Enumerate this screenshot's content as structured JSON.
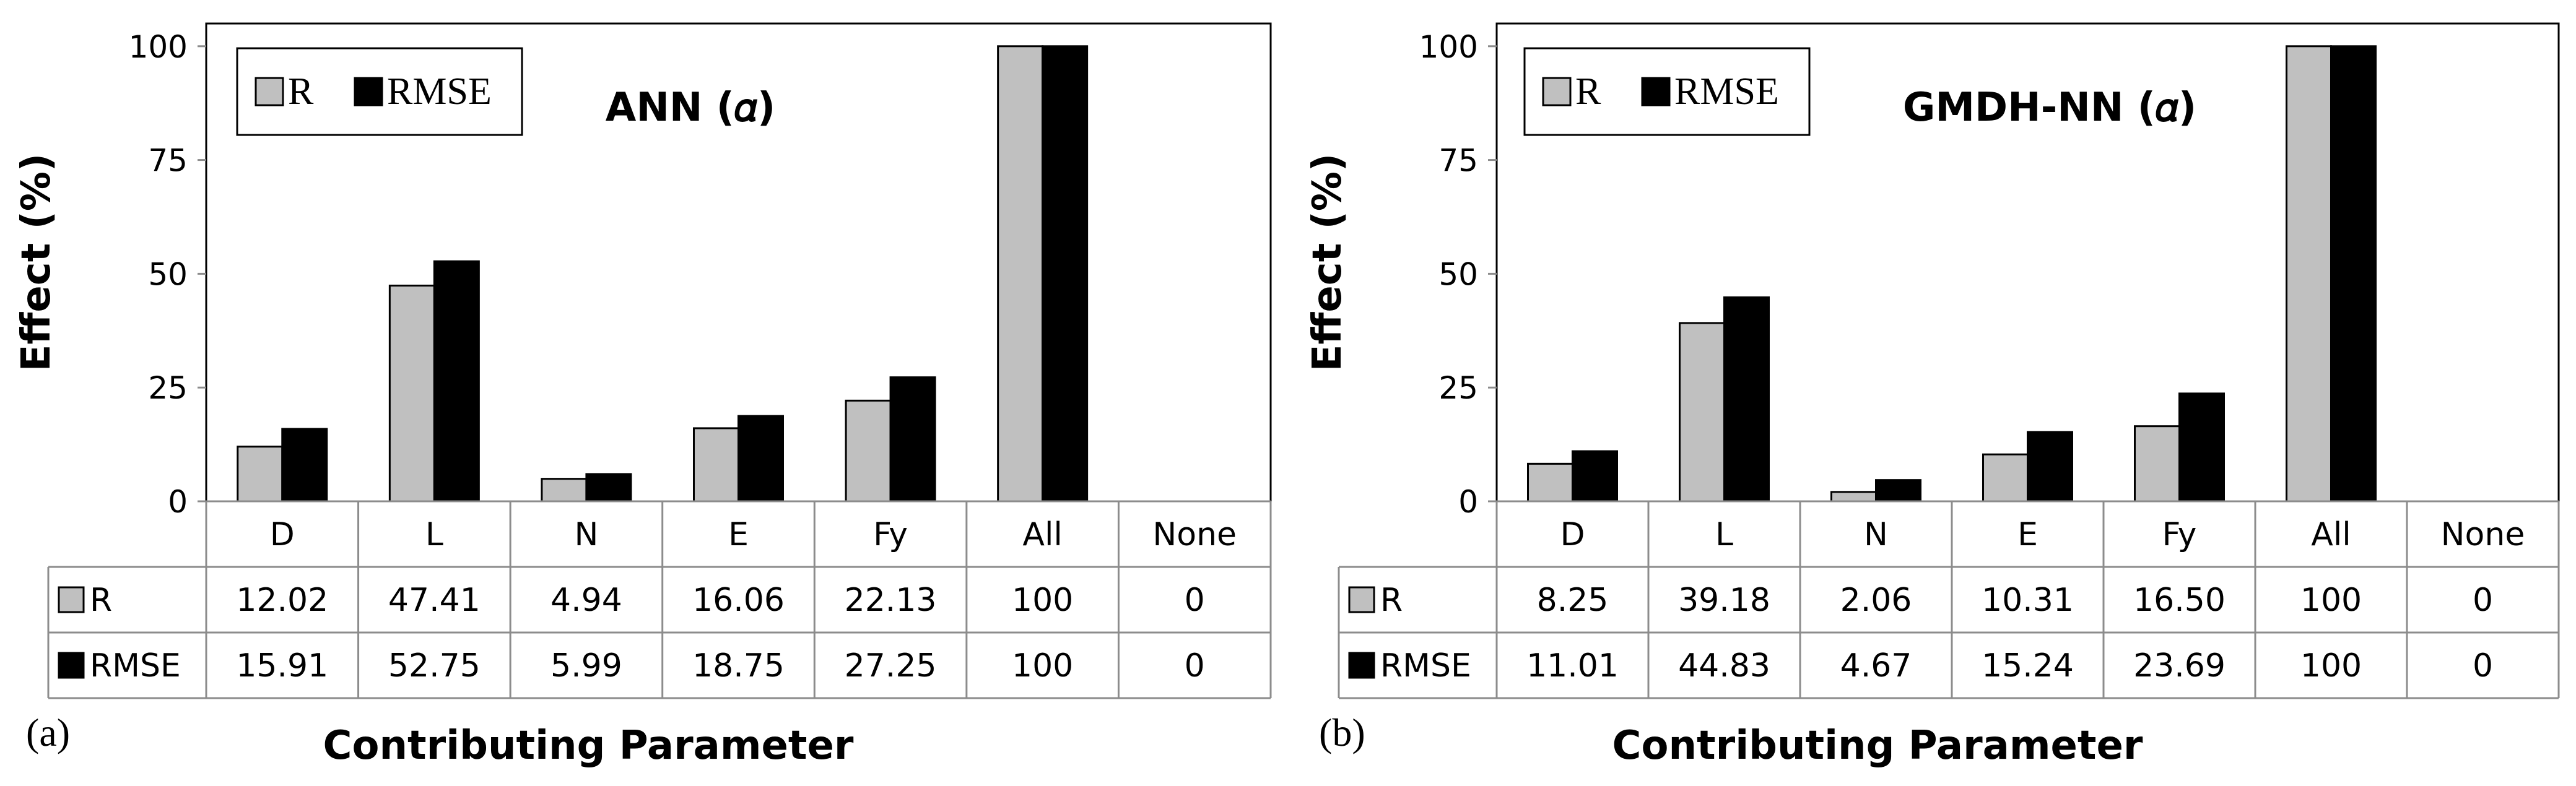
{
  "colors": {
    "r_series": "#c0c0c0",
    "rmse_series": "#000000",
    "axis": "#8c8c8c",
    "frame": "#000000"
  },
  "chart_data": [
    {
      "type": "bar",
      "panel_label": "(a)",
      "title": "ANN (𝛼)",
      "xlabel": "Contributing Parameter",
      "ylabel": "Effect (%)",
      "ylim": [
        0,
        105
      ],
      "yticks": [
        "0",
        "25",
        "50",
        "75",
        "100"
      ],
      "categories": [
        "D",
        "L",
        "N",
        "E",
        "Fy",
        "All",
        "None"
      ],
      "legend_position": "top-left",
      "series": [
        {
          "name": "R",
          "values": [
            12.02,
            47.41,
            4.94,
            16.06,
            22.13,
            100,
            0
          ],
          "labels": [
            "12.02",
            "47.41",
            "4.94",
            "16.06",
            "22.13",
            "100",
            "0"
          ]
        },
        {
          "name": "RMSE",
          "values": [
            15.91,
            52.75,
            5.99,
            18.75,
            27.25,
            100,
            0
          ],
          "labels": [
            "15.91",
            "52.75",
            "5.99",
            "18.75",
            "27.25",
            "100",
            "0"
          ]
        }
      ]
    },
    {
      "type": "bar",
      "panel_label": "(b)",
      "title": "GMDH-NN (𝛼)",
      "xlabel": "Contributing Parameter",
      "ylabel": "Effect (%)",
      "ylim": [
        0,
        105
      ],
      "yticks": [
        "0",
        "25",
        "50",
        "75",
        "100"
      ],
      "categories": [
        "D",
        "L",
        "N",
        "E",
        "Fy",
        "All",
        "None"
      ],
      "legend_position": "top-left",
      "series": [
        {
          "name": "R",
          "values": [
            8.25,
            39.18,
            2.06,
            10.31,
            16.5,
            100,
            0
          ],
          "labels": [
            "8.25",
            "39.18",
            "2.06",
            "10.31",
            "16.50",
            "100",
            "0"
          ]
        },
        {
          "name": "RMSE",
          "values": [
            11.01,
            44.83,
            4.67,
            15.24,
            23.69,
            100,
            0
          ],
          "labels": [
            "11.01",
            "44.83",
            "4.67",
            "15.24",
            "23.69",
            "100",
            "0"
          ]
        }
      ]
    }
  ]
}
